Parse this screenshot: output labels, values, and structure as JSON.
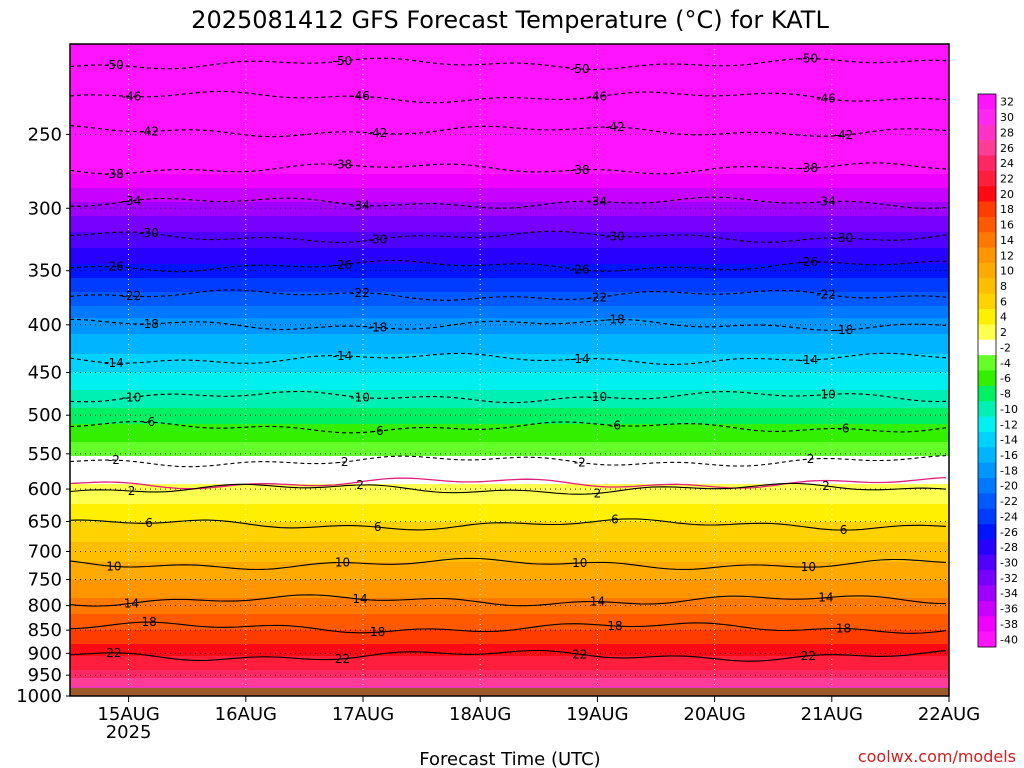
{
  "chart_data": {
    "type": "heatmap",
    "title": "2025081412 GFS Forecast Temperature (°C) for KATL",
    "xlabel": "Forecast Time (UTC)",
    "ylabel": "",
    "x_ticks": [
      {
        "value": "2025-08-15T00",
        "label": "15AUG",
        "sublabel": "2025"
      },
      {
        "value": "2025-08-16T00",
        "label": "16AUG"
      },
      {
        "value": "2025-08-17T00",
        "label": "17AUG"
      },
      {
        "value": "2025-08-18T00",
        "label": "18AUG"
      },
      {
        "value": "2025-08-19T00",
        "label": "19AUG"
      },
      {
        "value": "2025-08-20T00",
        "label": "20AUG"
      },
      {
        "value": "2025-08-21T00",
        "label": "21AUG"
      },
      {
        "value": "2025-08-22T00",
        "label": "22AUG"
      }
    ],
    "xlim": [
      "2025-08-14T12",
      "2025-08-22T00"
    ],
    "y_ticks": [
      250,
      300,
      350,
      400,
      450,
      500,
      550,
      600,
      650,
      700,
      750,
      800,
      850,
      900,
      950,
      1000
    ],
    "ylim": [
      200,
      1000
    ],
    "y_log": true,
    "y_reversed": true,
    "grid": true,
    "colorbar": {
      "labels": [
        "32",
        "30",
        "28",
        "26",
        "24",
        "22",
        "20",
        "18",
        "16",
        "14",
        "12",
        "10",
        "8",
        "6",
        "4",
        "2",
        "-2",
        "-4",
        "-6",
        "-8",
        "-10",
        "-12",
        "-14",
        "-16",
        "-18",
        "-20",
        "-22",
        "-24",
        "-26",
        "-28",
        "-30",
        "-32",
        "-34",
        "-36",
        "-38",
        "-40"
      ],
      "colors": [
        "#ff14ff",
        "#ff28f0",
        "#ff32c8",
        "#ff3c96",
        "#ff2864",
        "#ff1e3c",
        "#ff0a14",
        "#ff3c00",
        "#ff5a00",
        "#ff7800",
        "#ff9600",
        "#ffaa00",
        "#ffbe00",
        "#ffd200",
        "#fff000",
        "#ffff50",
        "#ffffff",
        "#64ff28",
        "#32f000",
        "#00f064",
        "#00f0b4",
        "#00f0f0",
        "#00d2ff",
        "#00b4ff",
        "#0096ff",
        "#0078ff",
        "#005aff",
        "#003cff",
        "#0014ff",
        "#2800ff",
        "#5000ff",
        "#7800ff",
        "#a000ff",
        "#c800ff",
        "#f000ff",
        "#ff14ff"
      ]
    },
    "temperature_levels": [
      {
        "p": 200,
        "t": -54
      },
      {
        "p": 225,
        "t": -48
      },
      {
        "p": 250,
        "t": -42
      },
      {
        "p": 275,
        "t": -38
      },
      {
        "p": 300,
        "t": -33
      },
      {
        "p": 325,
        "t": -29
      },
      {
        "p": 350,
        "t": -25
      },
      {
        "p": 375,
        "t": -21
      },
      {
        "p": 400,
        "t": -17
      },
      {
        "p": 450,
        "t": -12
      },
      {
        "p": 500,
        "t": -7
      },
      {
        "p": 550,
        "t": -2.5
      },
      {
        "p": 575,
        "t": 0.5
      },
      {
        "p": 600,
        "t": 2.5
      },
      {
        "p": 650,
        "t": 6
      },
      {
        "p": 700,
        "t": 9
      },
      {
        "p": 750,
        "t": 12
      },
      {
        "p": 800,
        "t": 15
      },
      {
        "p": 850,
        "t": 18
      },
      {
        "p": 900,
        "t": 21.5
      },
      {
        "p": 950,
        "t": 25
      },
      {
        "p": 975,
        "t": 28
      }
    ],
    "contours": [
      {
        "label": "-50",
        "p": 210
      },
      {
        "label": "-46",
        "p": 228
      },
      {
        "label": "-42",
        "p": 248
      },
      {
        "label": "-38",
        "p": 272
      },
      {
        "label": "-34",
        "p": 296
      },
      {
        "label": "-30",
        "p": 322
      },
      {
        "label": "-26",
        "p": 346
      },
      {
        "label": "-22",
        "p": 372
      },
      {
        "label": "-18",
        "p": 400
      },
      {
        "label": "-14",
        "p": 435
      },
      {
        "label": "-10",
        "p": 478
      },
      {
        "label": "-6",
        "p": 515
      },
      {
        "label": "-2",
        "p": 560
      },
      {
        "label": "2",
        "p": 600
      },
      {
        "label": "6",
        "p": 655
      },
      {
        "label": "10",
        "p": 722
      },
      {
        "label": "14",
        "p": 790
      },
      {
        "label": "18",
        "p": 845
      },
      {
        "label": "22",
        "p": 905
      }
    ],
    "surface_pressure": 980
  },
  "credit": "coolwx.com/models"
}
